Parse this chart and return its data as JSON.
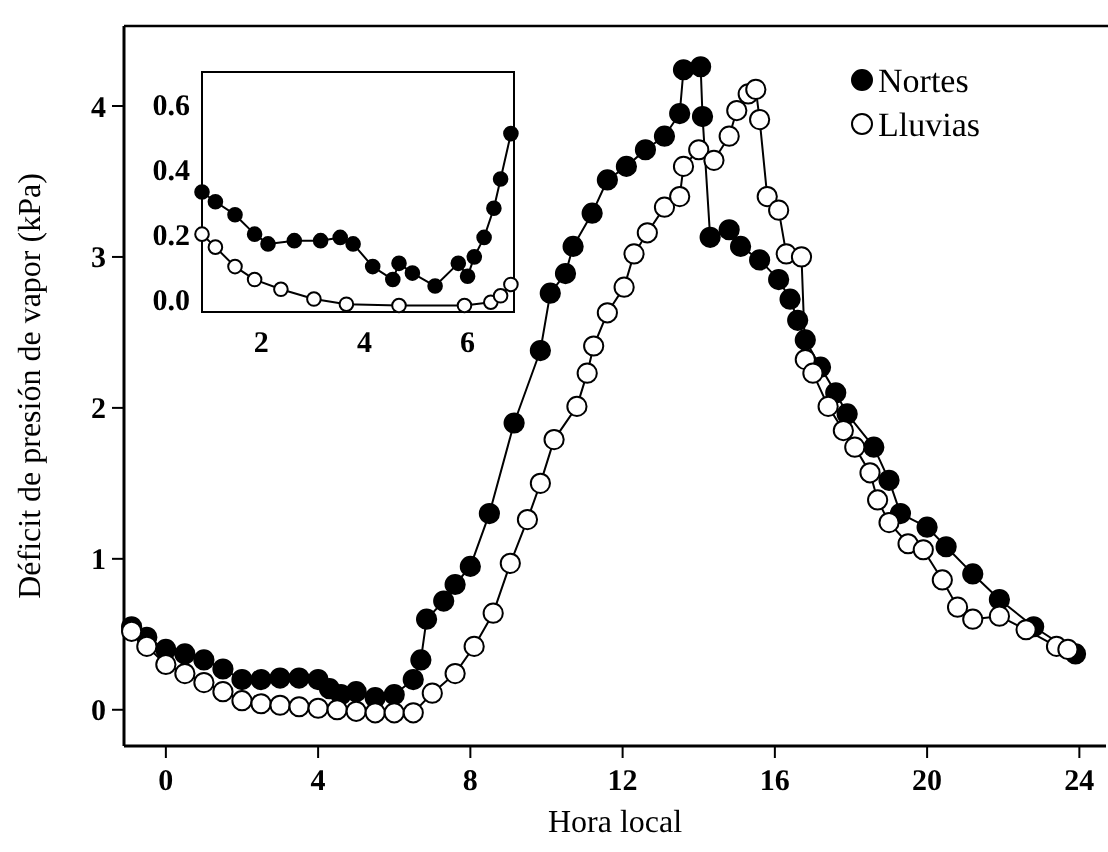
{
  "chart_data": [
    {
      "type": "line",
      "xlabel": "Hora local",
      "ylabel": "Déficit de presión de vapor (kPa)",
      "xlim": [
        -1.1,
        24.7
      ],
      "ylim": [
        -0.24,
        4.53
      ],
      "xticks": [
        0,
        4,
        8,
        12,
        16,
        20,
        24
      ],
      "yticks": [
        0,
        1,
        2,
        3,
        4
      ],
      "grid": false,
      "legend": "top right",
      "marker": "circle",
      "line_style": "solid",
      "series": [
        {
          "name": "Nortes",
          "color": "#000000",
          "x": [
            -0.9,
            -0.5,
            0,
            0.5,
            1,
            1.5,
            2,
            2.5,
            3,
            3.5,
            4,
            4.3,
            4.6,
            5,
            5.5,
            6,
            6.5,
            6.7,
            6.85,
            7.3,
            7.6,
            8.0,
            8.5,
            9.15,
            9.84,
            10.1,
            10.5,
            10.7,
            11.2,
            11.6,
            12.1,
            12.6,
            13.1,
            13.5,
            13.6,
            14.05,
            14.1,
            14.3,
            14.8,
            15.1,
            15.6,
            16.1,
            16.4,
            16.6,
            16.8,
            17.2,
            17.6,
            17.9,
            18.6,
            19.0,
            19.3,
            20.0,
            20.5,
            21.2,
            21.9,
            22.8,
            23.9
          ],
          "values": [
            0.55,
            0.48,
            0.4,
            0.37,
            0.33,
            0.27,
            0.2,
            0.2,
            0.21,
            0.21,
            0.2,
            0.14,
            0.1,
            0.12,
            0.08,
            0.1,
            0.2,
            0.33,
            0.6,
            0.72,
            0.83,
            0.95,
            1.3,
            1.9,
            2.38,
            2.76,
            2.89,
            3.07,
            3.29,
            3.51,
            3.6,
            3.71,
            3.8,
            3.95,
            4.24,
            4.26,
            3.93,
            3.13,
            3.18,
            3.07,
            2.98,
            2.85,
            2.72,
            2.58,
            2.45,
            2.27,
            2.1,
            1.96,
            1.74,
            1.52,
            1.3,
            1.21,
            1.08,
            0.9,
            0.73,
            0.55,
            0.37
          ]
        },
        {
          "name": "Lluvias",
          "color": "#ffffff",
          "x": [
            -0.9,
            -0.5,
            0,
            0.5,
            1,
            1.5,
            2,
            2.5,
            3,
            3.5,
            4,
            4.5,
            5,
            5.5,
            6,
            6.5,
            7.0,
            7.6,
            8.1,
            8.6,
            9.05,
            9.5,
            9.84,
            10.2,
            10.8,
            11.07,
            11.24,
            11.6,
            12.04,
            12.3,
            12.65,
            13.1,
            13.5,
            13.6,
            14.0,
            14.4,
            14.8,
            15.0,
            15.3,
            15.5,
            15.6,
            15.8,
            16.1,
            16.3,
            16.7,
            16.8,
            17.0,
            17.4,
            17.8,
            18.1,
            18.5,
            18.7,
            19.0,
            19.5,
            19.9,
            20.4,
            20.8,
            21.2,
            21.9,
            22.6,
            23.4,
            23.7
          ],
          "values": [
            0.52,
            0.42,
            0.3,
            0.24,
            0.18,
            0.12,
            0.06,
            0.04,
            0.03,
            0.02,
            0.01,
            0.0,
            -0.01,
            -0.02,
            -0.02,
            -0.02,
            0.11,
            0.24,
            0.42,
            0.64,
            0.97,
            1.26,
            1.5,
            1.79,
            2.01,
            2.23,
            2.41,
            2.63,
            2.8,
            3.02,
            3.16,
            3.33,
            3.4,
            3.6,
            3.71,
            3.64,
            3.8,
            3.97,
            4.08,
            4.11,
            3.91,
            3.4,
            3.31,
            3.02,
            3.0,
            2.32,
            2.23,
            2.01,
            1.85,
            1.74,
            1.57,
            1.39,
            1.24,
            1.1,
            1.06,
            0.86,
            0.68,
            0.6,
            0.62,
            0.53,
            0.42,
            0.4
          ]
        }
      ]
    },
    {
      "type": "line",
      "xlim": [
        0.85,
        6.9
      ],
      "ylim": [
        -0.04,
        0.7
      ],
      "xticks": [
        2,
        4,
        6
      ],
      "yticks": [
        {
          "value": 0,
          "label": "0.0"
        },
        {
          "value": 0.2,
          "label": "0.2"
        },
        {
          "value": 0.4,
          "label": "0.4"
        },
        {
          "value": 0.6,
          "label": "0.6"
        }
      ],
      "grid": false,
      "marker": "circle",
      "line_style": "solid",
      "series": [
        {
          "color": "#000000",
          "x": [
            0.85,
            1.11,
            1.49,
            1.87,
            2.13,
            2.64,
            3.15,
            3.53,
            3.78,
            4.16,
            4.55,
            4.67,
            4.93,
            5.37,
            5.82,
            6.0,
            6.13,
            6.32,
            6.51,
            6.64,
            6.84
          ],
          "values": [
            0.33,
            0.3,
            0.26,
            0.2,
            0.17,
            0.18,
            0.18,
            0.19,
            0.17,
            0.1,
            0.06,
            0.11,
            0.08,
            0.04,
            0.11,
            0.07,
            0.13,
            0.19,
            0.28,
            0.37,
            0.51
          ]
        },
        {
          "color": "#ffffff",
          "x": [
            0.85,
            1.11,
            1.49,
            1.87,
            2.38,
            3.02,
            3.65,
            4.67,
            5.94,
            6.45,
            6.64,
            6.84
          ],
          "values": [
            0.2,
            0.16,
            0.1,
            0.06,
            0.03,
            0.0,
            -0.016,
            -0.02,
            -0.02,
            -0.01,
            0.01,
            0.045
          ]
        }
      ]
    }
  ]
}
